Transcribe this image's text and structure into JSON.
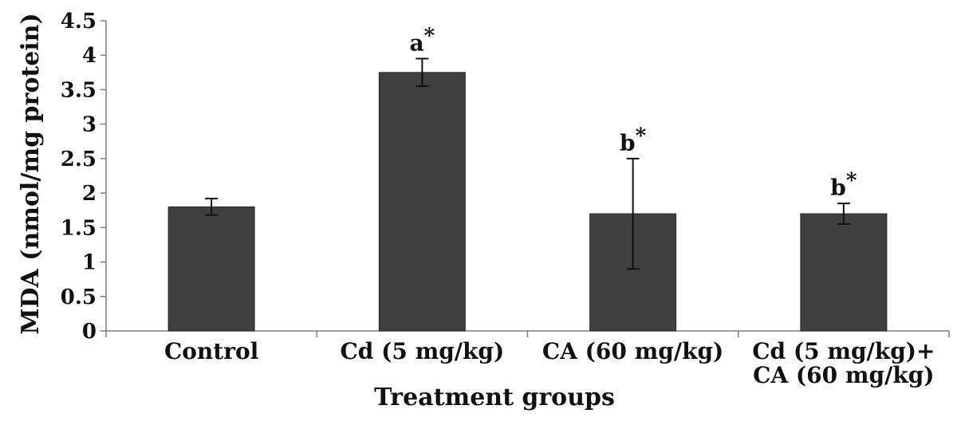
{
  "chart_data": {
    "type": "bar",
    "title": "",
    "xlabel": "Treatment groups",
    "ylabel": "MDA (nmol/mg protein)",
    "ylim": [
      0,
      4.5
    ],
    "yticks": [
      "0",
      "0.5",
      "1",
      "1.5",
      "2",
      "2.5",
      "3",
      "3.5",
      "4",
      "4.5"
    ],
    "categories": [
      [
        "Control"
      ],
      [
        "Cd (5 mg/kg)"
      ],
      [
        "CA (60 mg/kg)"
      ],
      [
        "Cd (5 mg/kg)+",
        "CA (60 mg/kg)"
      ]
    ],
    "values": [
      1.8,
      3.75,
      1.7,
      1.7
    ],
    "errors": [
      0.12,
      0.2,
      0.8,
      0.15
    ],
    "annotations": [
      {
        "letter": "",
        "mark": ""
      },
      {
        "letter": "a",
        "mark": "*"
      },
      {
        "letter": "b",
        "mark": "*"
      },
      {
        "letter": "b",
        "mark": "*"
      }
    ],
    "grid": false,
    "legend": "none",
    "bar_color": "#3f3f3f",
    "axis_color": "#7f7f7f"
  }
}
